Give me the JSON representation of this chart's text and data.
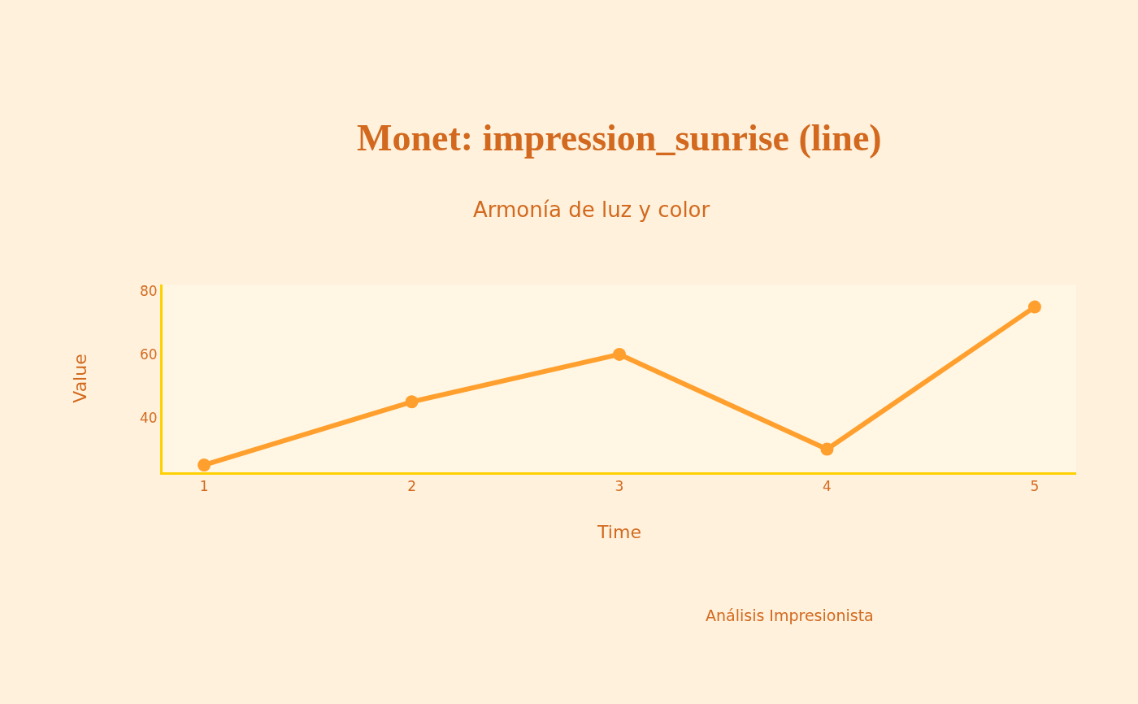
{
  "chart_data": {
    "type": "line",
    "title": "Monet: impression_sunrise (line)",
    "subtitle": "Armonía de luz y color",
    "xlabel": "Time",
    "ylabel": "Value",
    "annotations": [
      "Análisis Impresionista"
    ],
    "x": [
      1,
      2,
      3,
      4,
      5
    ],
    "series": [
      {
        "color": "#ffa02e",
        "values": [
          25,
          45,
          60,
          30,
          75
        ]
      }
    ],
    "xlim": [
      0.8,
      5.2
    ],
    "xticks": [
      1,
      2,
      3,
      4,
      5
    ],
    "ylim": [
      22.7,
      82.1
    ],
    "yticks": [
      40,
      60,
      80
    ],
    "grid": false,
    "legend": false,
    "marker": "circle",
    "line_style": "solid"
  }
}
